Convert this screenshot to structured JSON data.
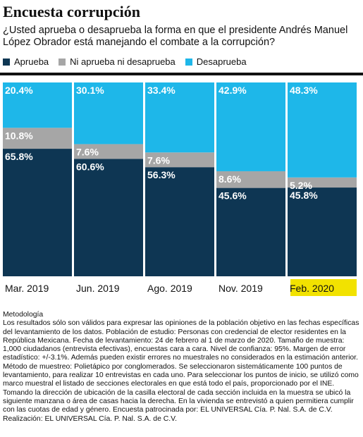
{
  "title": "Encuesta corrupción",
  "subtitle": "¿Usted aprueba o desaprueba la forma en que el presidente Andrés Manuel López Obrador está manejando el combate a la corrupción?",
  "legend": [
    {
      "label": "Aprueba",
      "color": "#0e3653"
    },
    {
      "label": "Ni aprueba ni desaprueba",
      "color": "#a6a6a6"
    },
    {
      "label": "Desaprueba",
      "color": "#1eb7e9"
    }
  ],
  "colors": {
    "aprueba": "#0e3653",
    "ni": "#a6a6a6",
    "desaprueba": "#1eb7e9",
    "highlight": "#f2e200"
  },
  "chart_data": {
    "type": "bar",
    "stacked": true,
    "categories": [
      "Mar. 2019",
      "Jun. 2019",
      "Ago. 2019",
      "Nov. 2019",
      "Feb. 2020"
    ],
    "highlighted_category": "Feb. 2020",
    "series": [
      {
        "name": "Aprueba",
        "values": [
          65.8,
          60.6,
          56.3,
          45.6,
          45.8
        ],
        "labels": [
          "65.8%",
          "60.6%",
          "56.3%",
          "45.6%",
          "45.8%"
        ]
      },
      {
        "name": "Ni aprueba ni desaprueba",
        "values": [
          10.8,
          7.6,
          7.6,
          8.6,
          5.2
        ],
        "labels": [
          "10.8%",
          "7.6%",
          "7.6%",
          "8.6%",
          "5.2%"
        ]
      },
      {
        "name": "Desaprueba",
        "values": [
          20.4,
          30.1,
          33.4,
          42.9,
          48.3
        ],
        "labels": [
          "20.4%",
          "30.1%",
          "33.4%",
          "42.9%",
          "48.3%"
        ]
      }
    ],
    "ylim": [
      0,
      100
    ]
  },
  "methodology": {
    "heading": "Metodología",
    "text": "Los resultados sólo son válidos para expresar las opiniones de la población objetivo en las fechas específicas del levantamiento de los datos. Población de estudio: Personas con credencial de elector residentes en la República Mexicana. Fecha de levantamiento: 24 de febrero al 1 de marzo de 2020. Tamaño de muestra: 1,000 ciudadanos (entrevista efectivas), encuestas cara a cara. Nivel de confianza: 95%. Margen de error estadístico: +/-3.1%. Además pueden existir errores no muestrales no considerados en la estimación anterior. Método de muestreo: Polietápico por conglomerados. Se seleccionaron sistemáticamente 100 puntos de levantamiento, para realizar 10 entrevistas en cada uno. Para seleccionar los puntos de inicio, se utilizó como marco muestral el listado de secciones electorales en que está todo el país, proporcionado por el INE. Tomando la dirección de ubicación de la casilla electoral de cada sección incluida en la muestra se ubicó la siguiente manzana o área de casas hacia la derecha. En la vivienda se entrevistó a quien permitiera cumplir con las cuotas de edad y género. Encuesta patrocinada por: EL UNIVERSAL Cía. P. Nal. S.A. de C.V. Realización: EL UNIVERSAL Cía. P. Nal. S.A. de C.V."
  }
}
